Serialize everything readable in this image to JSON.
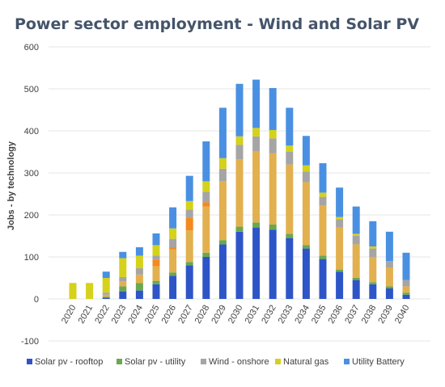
{
  "chart_data": {
    "type": "bar",
    "stacked": true,
    "title": "Power sector employment - Wind and Solar PV",
    "xlabel": "",
    "ylabel": "Jobs - by technology",
    "ylim": [
      -100,
      600
    ],
    "yticks": [
      "-100",
      "0",
      "100",
      "200",
      "300",
      "400",
      "500",
      "600"
    ],
    "grid": true,
    "legend_position": "bottom",
    "categories": [
      "2020",
      "2021",
      "2022",
      "2023",
      "2024",
      "2025",
      "2026",
      "2027",
      "2028",
      "2029",
      "2030",
      "2031",
      "2032",
      "2033",
      "2034",
      "2035",
      "2036",
      "2037",
      "2038",
      "2039",
      "2040"
    ],
    "series": [
      {
        "name": "Solar pv - rooftop",
        "color": "#2e55c7",
        "values": [
          0,
          0,
          3,
          18,
          20,
          35,
          55,
          80,
          100,
          130,
          160,
          170,
          165,
          145,
          120,
          95,
          65,
          45,
          35,
          25,
          10
        ]
      },
      {
        "name": "Solar pv - utility",
        "color": "#6aa84f",
        "values": [
          0,
          0,
          2,
          12,
          18,
          8,
          8,
          8,
          10,
          10,
          12,
          12,
          12,
          10,
          8,
          8,
          5,
          5,
          5,
          5,
          5
        ]
      },
      {
        "name": "",
        "color": "#e2b04f",
        "values": [
          0,
          0,
          5,
          12,
          20,
          35,
          55,
          75,
          110,
          140,
          160,
          170,
          170,
          165,
          150,
          120,
          100,
          80,
          60,
          45,
          15
        ]
      },
      {
        "name": "",
        "color": "#f4891e",
        "values": [
          0,
          0,
          0,
          0,
          0,
          15,
          5,
          30,
          10,
          0,
          0,
          0,
          0,
          0,
          0,
          0,
          0,
          0,
          0,
          0,
          0
        ]
      },
      {
        "name": "Wind - onshore",
        "color": "#a5a5a5",
        "values": [
          0,
          0,
          5,
          10,
          15,
          10,
          20,
          20,
          25,
          30,
          35,
          35,
          35,
          30,
          25,
          20,
          20,
          20,
          20,
          15,
          15
        ]
      },
      {
        "name": "Natural gas",
        "color": "#d4d21a",
        "values": [
          38,
          38,
          35,
          45,
          30,
          25,
          25,
          20,
          25,
          25,
          20,
          20,
          20,
          15,
          15,
          10,
          5,
          5,
          5,
          0,
          0
        ]
      },
      {
        "name": "Utility Battery",
        "color": "#4a90e2",
        "values": [
          0,
          0,
          15,
          15,
          20,
          28,
          50,
          60,
          95,
          120,
          125,
          115,
          100,
          90,
          70,
          70,
          70,
          65,
          60,
          70,
          65
        ]
      }
    ]
  }
}
